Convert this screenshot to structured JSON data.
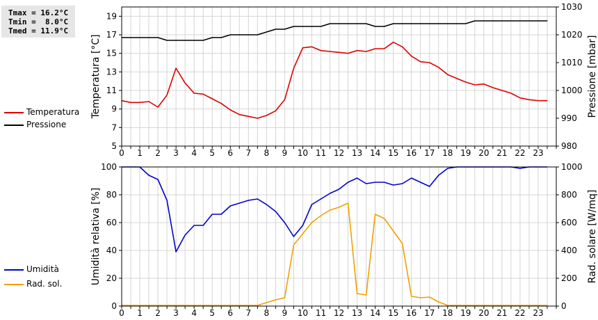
{
  "stats": {
    "tmax": "Tmax = 16.2°C",
    "tmin": "Tmin =  8.0°C",
    "tmed": "Tmed = 11.9°C"
  },
  "legend_top": [
    {
      "label": "Temperatura",
      "color": "#dd0000"
    },
    {
      "label": "Pressione",
      "color": "#000000"
    }
  ],
  "legend_bottom": [
    {
      "label": "Umidità",
      "color": "#0000cc"
    },
    {
      "label": "Rad. sol.",
      "color": "#f0a000"
    }
  ],
  "chart_data": [
    {
      "type": "line",
      "xlabel": "",
      "xlim": [
        0,
        24
      ],
      "x_ticks": [
        "0",
        "1",
        "2",
        "3",
        "4",
        "5",
        "6",
        "7",
        "8",
        "9",
        "10",
        "11",
        "12",
        "13",
        "14",
        "15",
        "16",
        "17",
        "18",
        "19",
        "20",
        "21",
        "22",
        "23"
      ],
      "ylabel": "Temperatura [°C]",
      "ylim": [
        5,
        20
      ],
      "y_ticks": [
        "5",
        "7",
        "9",
        "11",
        "13",
        "15",
        "17",
        "19"
      ],
      "y2label": "Pressione [mbar]",
      "y2lim": [
        980,
        1030
      ],
      "y2_ticks": [
        "980",
        "990",
        "1000",
        "1010",
        "1020",
        "1030"
      ],
      "grid": true,
      "legend": "left",
      "series": [
        {
          "name": "Temperatura",
          "axis": "left",
          "color": "#dd0000",
          "x": [
            0,
            0.5,
            1,
            1.5,
            2,
            2.5,
            3,
            3.5,
            4,
            4.5,
            5,
            5.5,
            6,
            6.5,
            7,
            7.5,
            8,
            8.5,
            9,
            9.5,
            10,
            10.5,
            11,
            11.5,
            12,
            12.5,
            13,
            13.5,
            14,
            14.5,
            15,
            15.5,
            16,
            16.5,
            17,
            17.5,
            18,
            18.5,
            19,
            19.5,
            20,
            20.5,
            21,
            21.5,
            22,
            22.5,
            23,
            23.5
          ],
          "values": [
            9.9,
            9.7,
            9.7,
            9.8,
            9.2,
            10.5,
            13.4,
            11.8,
            10.7,
            10.6,
            10.1,
            9.6,
            8.9,
            8.4,
            8.2,
            8.0,
            8.3,
            8.8,
            10.0,
            13.4,
            15.6,
            15.7,
            15.3,
            15.2,
            15.1,
            15.0,
            15.3,
            15.2,
            15.5,
            15.5,
            16.2,
            15.7,
            14.7,
            14.1,
            14.0,
            13.5,
            12.7,
            12.3,
            11.9,
            11.6,
            11.7,
            11.3,
            11.0,
            10.7,
            10.2,
            10.0,
            9.9,
            9.9
          ]
        },
        {
          "name": "Pressione",
          "axis": "right",
          "color": "#000000",
          "x": [
            0,
            0.5,
            1,
            1.5,
            2,
            2.5,
            3,
            3.5,
            4,
            4.5,
            5,
            5.5,
            6,
            6.5,
            7,
            7.5,
            8,
            8.5,
            9,
            9.5,
            10,
            10.5,
            11,
            11.5,
            12,
            12.5,
            13,
            13.5,
            14,
            14.5,
            15,
            15.5,
            16,
            16.5,
            17,
            17.5,
            18,
            18.5,
            19,
            19.5,
            20,
            20.5,
            21,
            21.5,
            22,
            22.5,
            23,
            23.5
          ],
          "values": [
            1019,
            1019,
            1019,
            1019,
            1019,
            1018,
            1018,
            1018,
            1018,
            1018,
            1019,
            1019,
            1020,
            1020,
            1020,
            1020,
            1021,
            1022,
            1022,
            1023,
            1023,
            1023,
            1023,
            1024,
            1024,
            1024,
            1024,
            1024,
            1023,
            1023,
            1024,
            1024,
            1024,
            1024,
            1024,
            1024,
            1024,
            1024,
            1024,
            1025,
            1025,
            1025,
            1025,
            1025,
            1025,
            1025,
            1025,
            1025
          ]
        }
      ]
    },
    {
      "type": "line",
      "xlabel": "",
      "xlim": [
        0,
        24
      ],
      "x_ticks": [
        "0",
        "1",
        "2",
        "3",
        "4",
        "5",
        "6",
        "7",
        "8",
        "9",
        "10",
        "11",
        "12",
        "13",
        "14",
        "15",
        "16",
        "17",
        "18",
        "19",
        "20",
        "21",
        "22",
        "23"
      ],
      "ylabel": "Umidità relativa [%]",
      "ylim": [
        0,
        100
      ],
      "y_ticks": [
        "0",
        "20",
        "40",
        "60",
        "80",
        "100"
      ],
      "y2label": "Rad. solare [W/mq]",
      "y2lim": [
        0,
        1000
      ],
      "y2_ticks": [
        "0",
        "200",
        "400",
        "600",
        "800",
        "1000"
      ],
      "grid": true,
      "legend": "left",
      "series": [
        {
          "name": "Umidità",
          "axis": "left",
          "color": "#0000cc",
          "x": [
            0,
            0.5,
            1,
            1.5,
            2,
            2.5,
            3,
            3.5,
            4,
            4.5,
            5,
            5.5,
            6,
            6.5,
            7,
            7.5,
            8,
            8.5,
            9,
            9.5,
            10,
            10.5,
            11,
            11.5,
            12,
            12.5,
            13,
            13.5,
            14,
            14.5,
            15,
            15.5,
            16,
            16.5,
            17,
            17.5,
            18,
            18.5,
            19,
            19.5,
            20,
            20.5,
            21,
            21.5,
            22,
            22.5,
            23,
            23.5
          ],
          "values": [
            100,
            100,
            100,
            94,
            91,
            76,
            39,
            51,
            58,
            58,
            66,
            66,
            72,
            74,
            76,
            77,
            73,
            68,
            60,
            50,
            58,
            73,
            77,
            81,
            84,
            89,
            92,
            88,
            89,
            89,
            87,
            88,
            92,
            89,
            86,
            94,
            99,
            100,
            100,
            100,
            100,
            100,
            100,
            100,
            99,
            100,
            100,
            100
          ]
        },
        {
          "name": "Rad. sol.",
          "axis": "right",
          "color": "#f0a000",
          "x": [
            0,
            0.5,
            1,
            1.5,
            2,
            2.5,
            3,
            3.5,
            4,
            4.5,
            5,
            5.5,
            6,
            6.5,
            7,
            7.5,
            8,
            8.5,
            9,
            9.5,
            10,
            10.5,
            11,
            11.5,
            12,
            12.5,
            13,
            13.5,
            14,
            14.5,
            15,
            15.5,
            16,
            16.5,
            17,
            17.5,
            18,
            18.5,
            19,
            19.5,
            20,
            20.5,
            21,
            21.5,
            22,
            22.5,
            23,
            23.5
          ],
          "values": [
            5,
            5,
            5,
            5,
            5,
            5,
            5,
            5,
            5,
            5,
            5,
            5,
            5,
            5,
            5,
            5,
            25,
            45,
            60,
            440,
            520,
            600,
            650,
            690,
            710,
            740,
            90,
            80,
            660,
            630,
            540,
            450,
            70,
            60,
            65,
            30,
            5,
            5,
            5,
            5,
            5,
            5,
            5,
            5,
            5,
            5,
            5,
            5
          ]
        }
      ]
    }
  ]
}
